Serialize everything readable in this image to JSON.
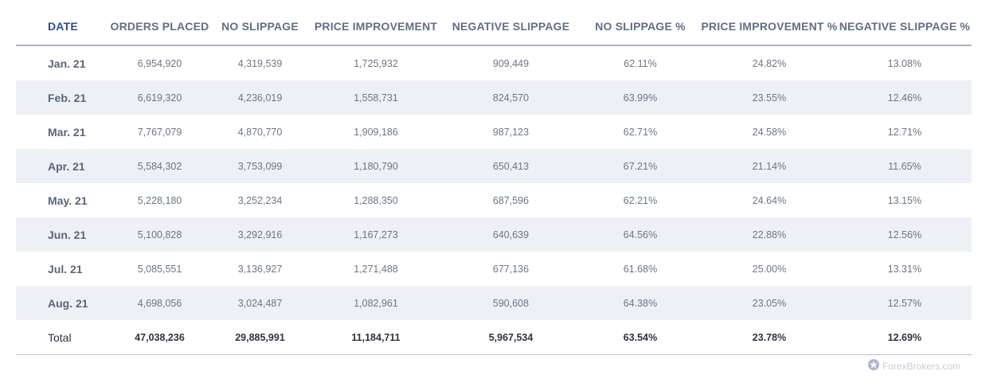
{
  "table": {
    "headers": [
      "DATE",
      "ORDERS PLACED",
      "NO SLIPPAGE",
      "PRICE IMPROVEMENT",
      "NEGATIVE SLIPPAGE",
      "NO SLIPPAGE %",
      "PRICE IMPROVEMENT %",
      "NEGATIVE SLIPPAGE %"
    ],
    "rows": [
      [
        "Jan. 21",
        "6,954,920",
        "4,319,539",
        "1,725,932",
        "909,449",
        "62.11%",
        "24.82%",
        "13.08%"
      ],
      [
        "Feb. 21",
        "6,619,320",
        "4,236,019",
        "1,558,731",
        "824,570",
        "63.99%",
        "23.55%",
        "12.46%"
      ],
      [
        "Mar. 21",
        "7,767,079",
        "4,870,770",
        "1,909,186",
        "987,123",
        "62.71%",
        "24.58%",
        "12.71%"
      ],
      [
        "Apr. 21",
        "5,584,302",
        "3,753,099",
        "1,180,790",
        "650,413",
        "67.21%",
        "21.14%",
        "11.65%"
      ],
      [
        "May. 21",
        "5,228,180",
        "3,252,234",
        "1,288,350",
        "687,596",
        "62.21%",
        "24.64%",
        "13.15%"
      ],
      [
        "Jun. 21",
        "5,100,828",
        "3,292,916",
        "1,167,273",
        "640,639",
        "64.56%",
        "22.88%",
        "12.56%"
      ],
      [
        "Jul. 21",
        "5,085,551",
        "3,136,927",
        "1,271,488",
        "677,136",
        "61.68%",
        "25.00%",
        "13.31%"
      ],
      [
        "Aug. 21",
        "4,698,056",
        "3,024,487",
        "1,082,961",
        "590,608",
        "64.38%",
        "23.05%",
        "12.57%"
      ]
    ],
    "total": [
      "Total",
      "47,038,236",
      "29,885,991",
      "11,184,711",
      "5,967,534",
      "63.54%",
      "23.78%",
      "12.69%"
    ]
  },
  "watermark": {
    "text": "ForexBrokers.com",
    "icon": "forexbrokers-logo-icon"
  },
  "colors": {
    "header_date": "#2a4f8a",
    "header_text": "#5f6f86",
    "row_alt_bg": "#edf0f5",
    "cell_text": "#6b7686",
    "total_text": "#2c3440"
  }
}
